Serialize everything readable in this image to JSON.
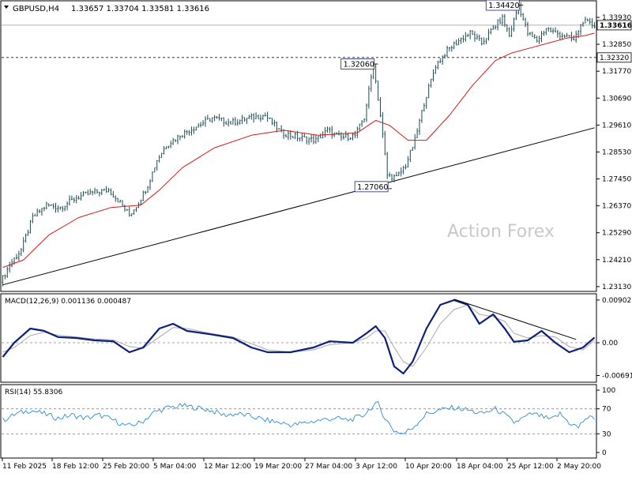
{
  "header": {
    "symbol": "GBPUSD,H4",
    "ohlc": "1.33657 1.33704 1.33581 1.33616"
  },
  "watermark": "Action Forex",
  "colors": {
    "candle": "#1c4a52",
    "ma": "#d11a1a",
    "trendline": "#000000",
    "macd": "#0d1f7a",
    "signal": "#a9a9a9",
    "rsi": "#2e8bd6",
    "price_tag_bg": "#ffffff",
    "price_tag_border": "#000000"
  },
  "chart_data": [
    {
      "type": "candlestick",
      "panel": "price",
      "ylim": [
        1.23,
        1.345
      ],
      "y_ticks": [
        "1.33930",
        "1.32850",
        "1.31770",
        "1.30690",
        "1.29610",
        "1.28530",
        "1.27450",
        "1.26370",
        "1.25290",
        "1.24210",
        "1.23130"
      ],
      "current_price": "1.33616",
      "level_line": "1.32320",
      "annotations": [
        {
          "label": "1.34420",
          "value": 1.3442,
          "index": 225
        },
        {
          "label": "1.32060",
          "value": 1.3206,
          "index": 162
        },
        {
          "label": "1.27060",
          "value": 1.2706,
          "index": 168
        }
      ],
      "x_labels": [
        "11 Feb 2025",
        "18 Feb 12:00",
        "25 Feb 20:00",
        "5 Mar 04:00",
        "12 Mar 12:00",
        "19 Mar 20:00",
        "27 Mar 04:00",
        "3 Apr 12:00",
        "10 Apr 20:00",
        "18 Apr 04:00",
        "25 Apr 12:00",
        "2 May 20:00"
      ],
      "price_path": [
        [
          0,
          1.233
        ],
        [
          4,
          1.24
        ],
        [
          9,
          1.246
        ],
        [
          14,
          1.259
        ],
        [
          20,
          1.264
        ],
        [
          26,
          1.263
        ],
        [
          33,
          1.267
        ],
        [
          40,
          1.269
        ],
        [
          47,
          1.27
        ],
        [
          52,
          1.265
        ],
        [
          56,
          1.26
        ],
        [
          60,
          1.265
        ],
        [
          64,
          1.272
        ],
        [
          68,
          1.282
        ],
        [
          72,
          1.288
        ],
        [
          78,
          1.292
        ],
        [
          84,
          1.295
        ],
        [
          92,
          1.299
        ],
        [
          100,
          1.297
        ],
        [
          108,
          1.299
        ],
        [
          115,
          1.3
        ],
        [
          122,
          1.293
        ],
        [
          130,
          1.291
        ],
        [
          137,
          1.29
        ],
        [
          142,
          1.294
        ],
        [
          148,
          1.291
        ],
        [
          154,
          1.292
        ],
        [
          158,
          1.299
        ],
        [
          162,
          1.3206
        ],
        [
          165,
          1.3
        ],
        [
          168,
          1.276
        ],
        [
          172,
          1.275
        ],
        [
          176,
          1.28
        ],
        [
          180,
          1.29
        ],
        [
          184,
          1.305
        ],
        [
          189,
          1.32
        ],
        [
          194,
          1.326
        ],
        [
          199,
          1.33
        ],
        [
          204,
          1.333
        ],
        [
          209,
          1.329
        ],
        [
          214,
          1.335
        ],
        [
          218,
          1.339
        ],
        [
          221,
          1.332
        ],
        [
          225,
          1.3442
        ],
        [
          229,
          1.333
        ],
        [
          233,
          1.33
        ],
        [
          237,
          1.335
        ],
        [
          241,
          1.333
        ],
        [
          245,
          1.332
        ],
        [
          249,
          1.33
        ],
        [
          253,
          1.338
        ],
        [
          257,
          1.3362
        ]
      ],
      "moving_average": [
        [
          0,
          1.239
        ],
        [
          9,
          1.242
        ],
        [
          20,
          1.252
        ],
        [
          33,
          1.259
        ],
        [
          47,
          1.263
        ],
        [
          60,
          1.264
        ],
        [
          68,
          1.27
        ],
        [
          78,
          1.279
        ],
        [
          92,
          1.287
        ],
        [
          108,
          1.292
        ],
        [
          122,
          1.294
        ],
        [
          137,
          1.292
        ],
        [
          154,
          1.293
        ],
        [
          162,
          1.298
        ],
        [
          168,
          1.296
        ],
        [
          176,
          1.29
        ],
        [
          184,
          1.29
        ],
        [
          194,
          1.3
        ],
        [
          204,
          1.312
        ],
        [
          214,
          1.322
        ],
        [
          221,
          1.325
        ],
        [
          229,
          1.327
        ],
        [
          237,
          1.329
        ],
        [
          245,
          1.331
        ],
        [
          253,
          1.332
        ],
        [
          257,
          1.333
        ]
      ],
      "trendline": [
        [
          0,
          1.232
        ],
        [
          257,
          1.295
        ]
      ]
    },
    {
      "type": "line",
      "panel": "macd",
      "label": "MACD(12,26,9) 0.001136 0.000487",
      "ylim": [
        -0.008,
        0.01
      ],
      "y_ticks": [
        "0.00902",
        "0.00",
        "-0.006915"
      ],
      "zero_line": 0,
      "series": [
        {
          "name": "MACD",
          "values": [
            [
              0,
              -0.003
            ],
            [
              5,
              0.0
            ],
            [
              12,
              0.003
            ],
            [
              18,
              0.0025
            ],
            [
              24,
              0.0012
            ],
            [
              32,
              0.001
            ],
            [
              40,
              0.0005
            ],
            [
              48,
              0.0003
            ],
            [
              55,
              -0.002
            ],
            [
              61,
              -0.001
            ],
            [
              68,
              0.003
            ],
            [
              74,
              0.004
            ],
            [
              80,
              0.0025
            ],
            [
              90,
              0.0018
            ],
            [
              100,
              0.001
            ],
            [
              108,
              -0.001
            ],
            [
              115,
              -0.002
            ],
            [
              125,
              -0.002
            ],
            [
              135,
              -0.001
            ],
            [
              142,
              0.0003
            ],
            [
              152,
              0.0
            ],
            [
              158,
              0.002
            ],
            [
              162,
              0.0035
            ],
            [
              166,
              0.001
            ],
            [
              170,
              -0.005
            ],
            [
              174,
              -0.0065
            ],
            [
              178,
              -0.004
            ],
            [
              184,
              0.003
            ],
            [
              190,
              0.008
            ],
            [
              196,
              0.009
            ],
            [
              202,
              0.008
            ],
            [
              207,
              0.004
            ],
            [
              213,
              0.006
            ],
            [
              218,
              0.003
            ],
            [
              222,
              0.0002
            ],
            [
              228,
              0.0005
            ],
            [
              234,
              0.0025
            ],
            [
              240,
              0.0
            ],
            [
              246,
              -0.002
            ],
            [
              252,
              -0.001
            ],
            [
              257,
              0.0011
            ]
          ]
        },
        {
          "name": "Signal",
          "values": [
            [
              0,
              -0.002
            ],
            [
              5,
              -0.001
            ],
            [
              12,
              0.0015
            ],
            [
              18,
              0.0022
            ],
            [
              24,
              0.0016
            ],
            [
              32,
              0.0012
            ],
            [
              40,
              0.0008
            ],
            [
              48,
              0.0006
            ],
            [
              55,
              -0.0008
            ],
            [
              61,
              -0.0012
            ],
            [
              68,
              0.0012
            ],
            [
              74,
              0.0032
            ],
            [
              80,
              0.003
            ],
            [
              90,
              0.002
            ],
            [
              100,
              0.0012
            ],
            [
              108,
              -0.0002
            ],
            [
              115,
              -0.0015
            ],
            [
              125,
              -0.002
            ],
            [
              135,
              -0.0015
            ],
            [
              142,
              -0.0004
            ],
            [
              152,
              0.0
            ],
            [
              158,
              0.001
            ],
            [
              162,
              0.0025
            ],
            [
              166,
              0.0025
            ],
            [
              170,
              -0.001
            ],
            [
              174,
              -0.004
            ],
            [
              178,
              -0.005
            ],
            [
              184,
              -0.001
            ],
            [
              190,
              0.004
            ],
            [
              196,
              0.007
            ],
            [
              202,
              0.008
            ],
            [
              207,
              0.006
            ],
            [
              213,
              0.0055
            ],
            [
              218,
              0.0045
            ],
            [
              222,
              0.002
            ],
            [
              228,
              0.001
            ],
            [
              234,
              0.0015
            ],
            [
              240,
              0.0012
            ],
            [
              246,
              -0.0008
            ],
            [
              252,
              -0.0015
            ],
            [
              257,
              0.0005
            ]
          ]
        }
      ],
      "trendline": [
        [
          196,
          0.0092
        ],
        [
          249,
          0.0007
        ]
      ]
    },
    {
      "type": "line",
      "panel": "rsi",
      "label": "RSI(14) 55.8306",
      "ylim": [
        0,
        100
      ],
      "y_ticks": [
        "100",
        "70",
        "30",
        "0"
      ],
      "levels": [
        70,
        30
      ],
      "series": [
        {
          "name": "RSI",
          "values": [
            [
              0,
              52
            ],
            [
              6,
              62
            ],
            [
              12,
              68
            ],
            [
              18,
              62
            ],
            [
              24,
              55
            ],
            [
              30,
              60
            ],
            [
              36,
              55
            ],
            [
              42,
              60
            ],
            [
              48,
              52
            ],
            [
              54,
              42
            ],
            [
              60,
              48
            ],
            [
              66,
              65
            ],
            [
              72,
              72
            ],
            [
              78,
              75
            ],
            [
              84,
              72
            ],
            [
              90,
              68
            ],
            [
              96,
              60
            ],
            [
              102,
              62
            ],
            [
              108,
              58
            ],
            [
              114,
              52
            ],
            [
              120,
              48
            ],
            [
              126,
              44
            ],
            [
              132,
              48
            ],
            [
              138,
              52
            ],
            [
              144,
              55
            ],
            [
              150,
              52
            ],
            [
              156,
              58
            ],
            [
              160,
              72
            ],
            [
              163,
              78
            ],
            [
              166,
              55
            ],
            [
              170,
              35
            ],
            [
              174,
              30
            ],
            [
              178,
              40
            ],
            [
              184,
              62
            ],
            [
              190,
              68
            ],
            [
              196,
              72
            ],
            [
              202,
              68
            ],
            [
              208,
              62
            ],
            [
              214,
              70
            ],
            [
              218,
              60
            ],
            [
              222,
              48
            ],
            [
              226,
              55
            ],
            [
              230,
              62
            ],
            [
              234,
              58
            ],
            [
              238,
              52
            ],
            [
              242,
              62
            ],
            [
              246,
              48
            ],
            [
              250,
              40
            ],
            [
              253,
              55
            ],
            [
              257,
              55.8
            ]
          ]
        }
      ]
    }
  ]
}
